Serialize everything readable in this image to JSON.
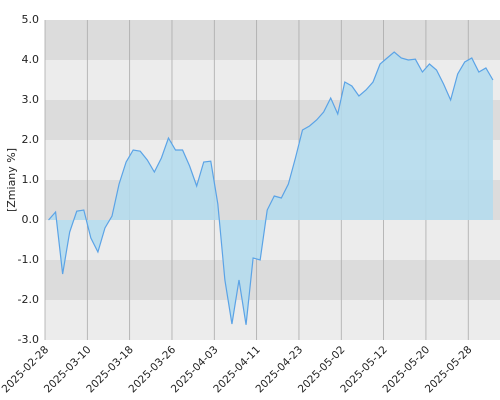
{
  "chart_data": {
    "type": "area",
    "y_label": "[Zmiany %]",
    "x": [
      0,
      1,
      2,
      3,
      4,
      5,
      6,
      7,
      8,
      9,
      10,
      11,
      12,
      13,
      14,
      15,
      16,
      17,
      18,
      19,
      20,
      21,
      22,
      23,
      24,
      25,
      26,
      27,
      28,
      29,
      30,
      31,
      32,
      33,
      34,
      35,
      36,
      37,
      38,
      39,
      40,
      41,
      42,
      43,
      44,
      45,
      46,
      47,
      48,
      49,
      50,
      51,
      52,
      53,
      54,
      55,
      56,
      57,
      58,
      59,
      60,
      61,
      62,
      63
    ],
    "values": [
      0.0,
      0.2,
      -1.35,
      -0.3,
      0.22,
      0.25,
      -0.45,
      -0.8,
      -0.2,
      0.1,
      0.9,
      1.45,
      1.75,
      1.72,
      1.5,
      1.2,
      1.55,
      2.05,
      1.75,
      1.75,
      1.35,
      0.85,
      1.45,
      1.47,
      0.4,
      -1.5,
      -2.6,
      -1.5,
      -2.62,
      -0.95,
      -1.0,
      0.25,
      0.6,
      0.55,
      0.9,
      1.55,
      2.25,
      2.35,
      2.5,
      2.7,
      3.05,
      2.65,
      3.45,
      3.35,
      3.1,
      3.25,
      3.45,
      3.9,
      4.05,
      4.2,
      4.05,
      4.0,
      4.02,
      3.7,
      3.9,
      3.75,
      3.4,
      3.0,
      3.65,
      3.95,
      4.05,
      3.7,
      3.8,
      3.5
    ],
    "color": "#5ba3e6",
    "fill_color": "#b3dcef",
    "xlim": [
      -0.5,
      64
    ],
    "xticks": [
      {
        "value": -0.5,
        "label": "2025-02-28"
      },
      {
        "value": 5.5,
        "label": "2025-03-10"
      },
      {
        "value": 11.5,
        "label": "2025-03-18"
      },
      {
        "value": 17.5,
        "label": "2025-03-26"
      },
      {
        "value": 23.5,
        "label": "2025-04-03"
      },
      {
        "value": 29.5,
        "label": "2025-04-11"
      },
      {
        "value": 35.5,
        "label": "2025-04-23"
      },
      {
        "value": 41.5,
        "label": "2025-05-02"
      },
      {
        "value": 47.5,
        "label": "2025-05-12"
      },
      {
        "value": 53.5,
        "label": "2025-05-20"
      },
      {
        "value": 59.5,
        "label": "2025-05-28"
      }
    ],
    "ylim": [
      -3,
      5
    ],
    "yticks": [
      {
        "value": -3,
        "label": "-3.0"
      },
      {
        "value": -2,
        "label": "-2.0"
      },
      {
        "value": -1,
        "label": "-1.0"
      },
      {
        "value": 0,
        "label": "0.0"
      },
      {
        "value": 1,
        "label": "1.0"
      },
      {
        "value": 2,
        "label": "2.0"
      },
      {
        "value": 3,
        "label": "3.0"
      },
      {
        "value": 4,
        "label": "4.0"
      },
      {
        "value": 5,
        "label": "5.0"
      }
    ],
    "grid": true
  }
}
